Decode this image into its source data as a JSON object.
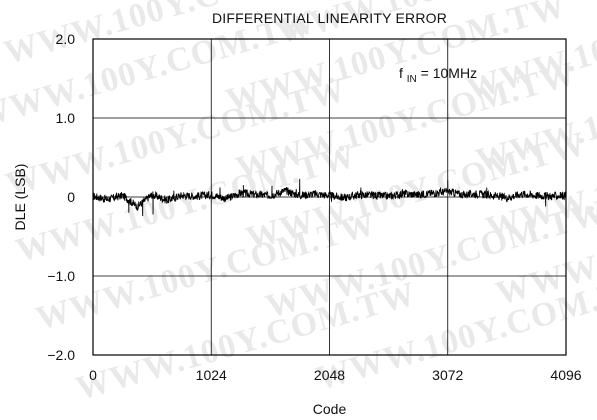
{
  "chart_data": {
    "type": "line",
    "title": "DIFFERENTIAL LINEARITY ERROR",
    "xlabel": "Code",
    "ylabel": "DLE (LSB)",
    "xlim": [
      0,
      4096
    ],
    "ylim": [
      -2.0,
      2.0
    ],
    "x_ticks": [
      0,
      1024,
      2048,
      3072,
      4096
    ],
    "x_tick_labels": [
      "0",
      "1024",
      "2048",
      "3072",
      "4096"
    ],
    "y_ticks": [
      -2.0,
      -1.0,
      0,
      1.0,
      2.0
    ],
    "y_tick_labels": [
      "−2.0",
      "−1.0",
      "0",
      "1.0",
      "2.0"
    ],
    "grid": true,
    "legend": "none",
    "annotation": {
      "prefix": "f",
      "subscript": "IN",
      "suffix": " = 10MHz"
    },
    "series": [
      {
        "x": [
          0,
          128,
          256,
          384,
          512,
          640,
          768,
          896,
          1024,
          1152,
          1280,
          1408,
          1536,
          1664,
          1792,
          1920,
          2048,
          2176,
          2304,
          2432,
          2560,
          2688,
          2816,
          2944,
          3072,
          3200,
          3328,
          3456,
          3584,
          3712,
          3840,
          3968,
          4096
        ],
        "values": [
          0.01,
          -0.03,
          0.02,
          -0.12,
          0.03,
          -0.04,
          0.02,
          0.01,
          0.03,
          -0.02,
          0.05,
          0.03,
          0.02,
          0.08,
          0.02,
          0.04,
          0.02,
          -0.01,
          0.03,
          0.02,
          0.01,
          0.04,
          0.03,
          0.05,
          0.07,
          0.03,
          0.04,
          0.02,
          -0.01,
          0.04,
          0.02,
          0.01,
          0.02
        ],
        "noise_amplitude": 0.05,
        "spikes": [
          {
            "x": 310,
            "y": -0.2
          },
          {
            "x": 430,
            "y": -0.24
          },
          {
            "x": 520,
            "y": -0.22
          },
          {
            "x": 700,
            "y": 0.08
          },
          {
            "x": 1100,
            "y": 0.12
          },
          {
            "x": 1302,
            "y": 0.15
          },
          {
            "x": 1550,
            "y": 0.14
          },
          {
            "x": 1760,
            "y": 0.1
          },
          {
            "x": 1790,
            "y": 0.23
          },
          {
            "x": 2066,
            "y": -0.06
          },
          {
            "x": 2320,
            "y": 0.12
          },
          {
            "x": 2680,
            "y": 0.1
          },
          {
            "x": 3010,
            "y": 0.12
          },
          {
            "x": 3072,
            "y": 0.21
          },
          {
            "x": 3410,
            "y": 0.12
          },
          {
            "x": 3920,
            "y": -0.12
          },
          {
            "x": 4050,
            "y": 0.06
          }
        ]
      }
    ]
  },
  "watermark": {
    "text": "WWW.100Y.COM.TW",
    "color": "#e9e9e9"
  },
  "colors": {
    "plot_border": "#000000",
    "grid": "#000000",
    "trace": "#000000",
    "background": "#ffffff"
  }
}
